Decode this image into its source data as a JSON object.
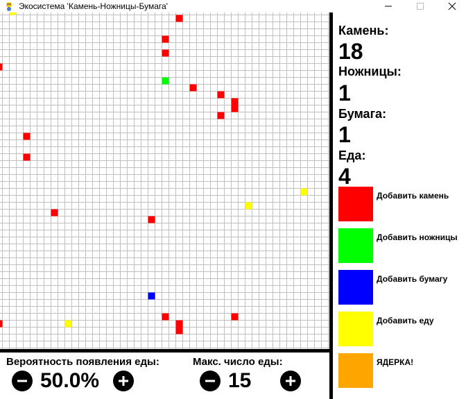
{
  "window": {
    "title": "Экосистема 'Камень-Ножницы-Бумага'",
    "icon": "pygame-snake-icon"
  },
  "grid": {
    "background": "#ffffff",
    "line_color": "#c0c0c0",
    "cells": [
      {
        "col": 1,
        "row": 0,
        "kind": "food"
      },
      {
        "col": 13,
        "row": 1,
        "kind": "stone"
      },
      {
        "col": 12,
        "row": 4,
        "kind": "stone"
      },
      {
        "col": 12,
        "row": 6,
        "kind": "stone"
      },
      {
        "col": 0,
        "row": 8,
        "kind": "stone"
      },
      {
        "col": 12,
        "row": 10,
        "kind": "scissors"
      },
      {
        "col": 14,
        "row": 11,
        "kind": "stone"
      },
      {
        "col": 16,
        "row": 12,
        "kind": "stone"
      },
      {
        "col": 17,
        "row": 13,
        "kind": "stone"
      },
      {
        "col": 17,
        "row": 14,
        "kind": "stone"
      },
      {
        "col": 16,
        "row": 15,
        "kind": "stone"
      },
      {
        "col": 2,
        "row": 18,
        "kind": "stone"
      },
      {
        "col": 2,
        "row": 21,
        "kind": "stone"
      },
      {
        "col": 22,
        "row": 26,
        "kind": "food"
      },
      {
        "col": 18,
        "row": 28,
        "kind": "food"
      },
      {
        "col": 4,
        "row": 29,
        "kind": "stone"
      },
      {
        "col": 11,
        "row": 30,
        "kind": "stone"
      },
      {
        "col": 11,
        "row": 41,
        "kind": "paper"
      },
      {
        "col": 12,
        "row": 44,
        "kind": "stone"
      },
      {
        "col": 17,
        "row": 44,
        "kind": "stone"
      },
      {
        "col": 0,
        "row": 45,
        "kind": "stone"
      },
      {
        "col": 5,
        "row": 45,
        "kind": "food"
      },
      {
        "col": 13,
        "row": 45,
        "kind": "stone"
      },
      {
        "col": 13,
        "row": 46,
        "kind": "stone"
      }
    ]
  },
  "colors": {
    "stone": "#ff0000",
    "scissors": "#00ff00",
    "paper": "#0000ff",
    "food": "#ffff00",
    "nuke": "#ffa500"
  },
  "stats": {
    "stone_label": "Камень:",
    "stone_value": "18",
    "scissors_label": "Ножницы:",
    "scissors_value": "1",
    "paper_label": "Бумага:",
    "paper_value": "1",
    "food_label": "Еда:",
    "food_value": "4"
  },
  "buttons": [
    {
      "label": "Добавить камень",
      "color_key": "stone"
    },
    {
      "label": "Добавить ножницы",
      "color_key": "scissors"
    },
    {
      "label": "Добавить бумагу",
      "color_key": "paper"
    },
    {
      "label": "Добавить еду",
      "color_key": "food"
    },
    {
      "label": "ЯДЕРКА!",
      "color_key": "nuke"
    }
  ],
  "controls": {
    "food_prob_label": "Вероятность появления еды:",
    "food_prob_value": "50.0%",
    "max_food_label": "Макс. число еды:",
    "max_food_value": "15",
    "minus_icon": "minus-circle-icon",
    "plus_icon": "plus-circle-icon"
  }
}
